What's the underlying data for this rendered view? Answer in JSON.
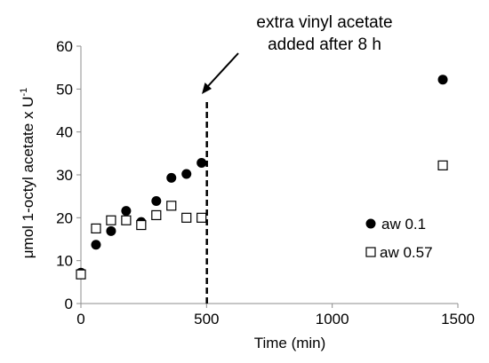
{
  "chart_data": {
    "type": "scatter",
    "xlabel": "Time (min)",
    "ylabel": "μmol 1-octyl acetate x U",
    "ylabel_superscript": "-1",
    "xlim": [
      0,
      1500
    ],
    "ylim": [
      0,
      60
    ],
    "x_ticks": [
      0,
      500,
      1000,
      1500
    ],
    "y_ticks": [
      0,
      10,
      20,
      30,
      40,
      50,
      60
    ],
    "grid": false,
    "legend_position": "right",
    "series": [
      {
        "name": "aw 0.1",
        "marker": "filled-circle",
        "color": "#000000",
        "points": [
          {
            "x": 0,
            "y": 7.2
          },
          {
            "x": 60,
            "y": 13.7
          },
          {
            "x": 120,
            "y": 16.9
          },
          {
            "x": 180,
            "y": 21.6
          },
          {
            "x": 240,
            "y": 19.0
          },
          {
            "x": 300,
            "y": 23.9
          },
          {
            "x": 360,
            "y": 29.3
          },
          {
            "x": 420,
            "y": 30.2
          },
          {
            "x": 480,
            "y": 32.8
          },
          {
            "x": 1440,
            "y": 52.2
          }
        ]
      },
      {
        "name": "aw 0.57",
        "marker": "open-square",
        "color": "#000000",
        "points": [
          {
            "x": 0,
            "y": 6.8
          },
          {
            "x": 60,
            "y": 17.5
          },
          {
            "x": 120,
            "y": 19.4
          },
          {
            "x": 180,
            "y": 19.4
          },
          {
            "x": 240,
            "y": 18.3
          },
          {
            "x": 300,
            "y": 20.6
          },
          {
            "x": 360,
            "y": 22.8
          },
          {
            "x": 420,
            "y": 20.0
          },
          {
            "x": 480,
            "y": 20.0
          },
          {
            "x": 1440,
            "y": 32.2
          }
        ]
      }
    ],
    "annotation": {
      "lines": [
        "extra vinyl acetate",
        "added after 8 h"
      ],
      "vline_x": 480
    }
  }
}
